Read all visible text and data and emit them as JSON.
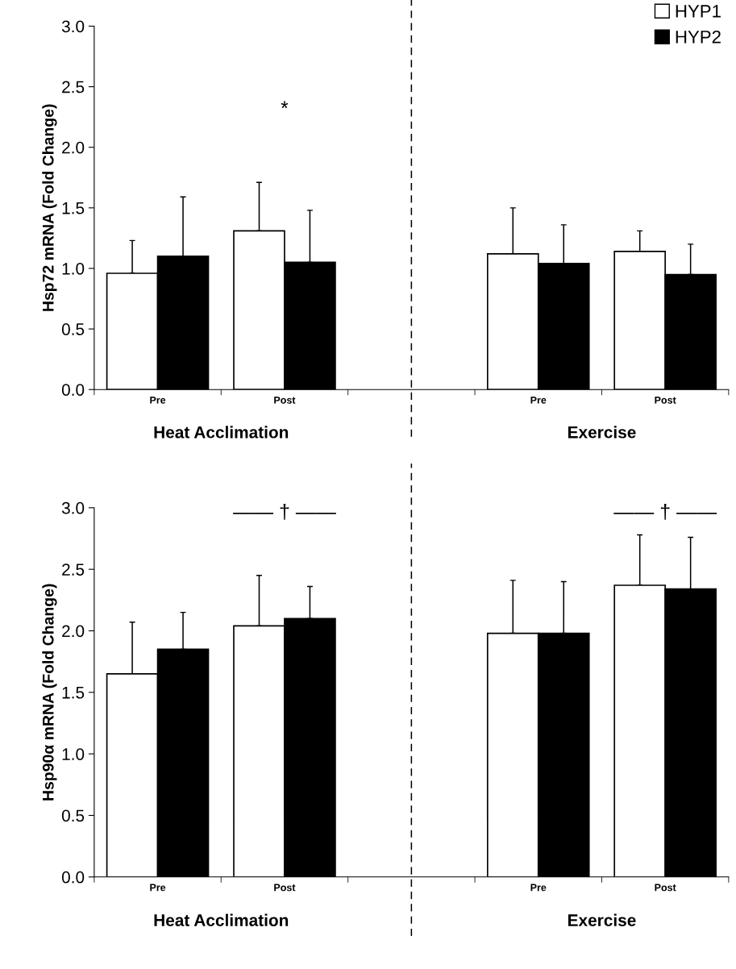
{
  "chart_data": [
    {
      "type": "bar",
      "ylabel": "Hsp72 mRNA (Fold Change)",
      "categories": [
        "Pre",
        "Post",
        null,
        "Pre",
        "Post"
      ],
      "series": [
        {
          "name": "HYP1",
          "color": "#ffffff",
          "values": [
            0.96,
            1.31,
            null,
            1.12,
            1.14
          ],
          "errors": [
            [
              0.96,
              1.23
            ],
            [
              1.31,
              1.71
            ],
            null,
            [
              1.12,
              1.5
            ],
            [
              1.14,
              1.31
            ]
          ]
        },
        {
          "name": "HYP2",
          "color": "#000000",
          "values": [
            1.1,
            1.05,
            null,
            1.04,
            0.95
          ],
          "errors": [
            [
              1.1,
              1.59
            ],
            [
              1.05,
              1.48
            ],
            null,
            [
              1.04,
              1.36
            ],
            [
              0.95,
              1.2
            ]
          ]
        }
      ],
      "ylim": [
        0,
        3
      ],
      "yticks": [
        {
          "value": 0,
          "label": "0.0"
        },
        {
          "value": 0.5,
          "label": "0.5"
        },
        {
          "value": 1,
          "label": "1.0"
        },
        {
          "value": 1.5,
          "label": "1.5"
        },
        {
          "value": 2,
          "label": "2.0"
        },
        {
          "value": 2.5,
          "label": "2.5"
        },
        {
          "value": 3,
          "label": "3.0"
        }
      ],
      "ref_lines": [
        {
          "axis": "x",
          "value": null,
          "line_style": "dashed",
          "color": "#000000"
        }
      ],
      "annotations": [
        "Heat Acclimation",
        "Exercise",
        "*"
      ],
      "legend": "top right"
    },
    {
      "type": "bar",
      "ylabel": "Hsp90α mRNA (Fold Change)",
      "categories": [
        "Pre",
        "Post",
        null,
        "Pre",
        "Post"
      ],
      "series": [
        {
          "color": "#ffffff",
          "values": [
            1.65,
            2.04,
            null,
            1.98,
            2.37
          ],
          "errors": [
            [
              1.65,
              2.07
            ],
            [
              2.04,
              2.45
            ],
            null,
            [
              1.98,
              2.41
            ],
            [
              2.37,
              2.78
            ]
          ]
        },
        {
          "color": "#000000",
          "values": [
            1.85,
            2.1,
            null,
            1.98,
            2.34
          ],
          "errors": [
            [
              1.85,
              2.15
            ],
            [
              2.1,
              2.36
            ],
            null,
            [
              1.98,
              2.4
            ],
            [
              2.34,
              2.76
            ]
          ]
        }
      ],
      "ylim": [
        0,
        3
      ],
      "yticks": [
        {
          "value": 0,
          "label": "0.0"
        },
        {
          "value": 0.5,
          "label": "0.5"
        },
        {
          "value": 1,
          "label": "1.0"
        },
        {
          "value": 1.5,
          "label": "1.5"
        },
        {
          "value": 2,
          "label": "2.0"
        },
        {
          "value": 2.5,
          "label": "2.5"
        },
        {
          "value": 3,
          "label": "3.0"
        }
      ],
      "ref_lines": [
        {
          "axis": "x",
          "value": null,
          "line_style": "dashed",
          "color": "#000000"
        }
      ],
      "annotations": [
        "Heat Acclimation",
        "Exercise",
        "—— † ——",
        "—— † ——"
      ],
      "legend": false
    }
  ]
}
